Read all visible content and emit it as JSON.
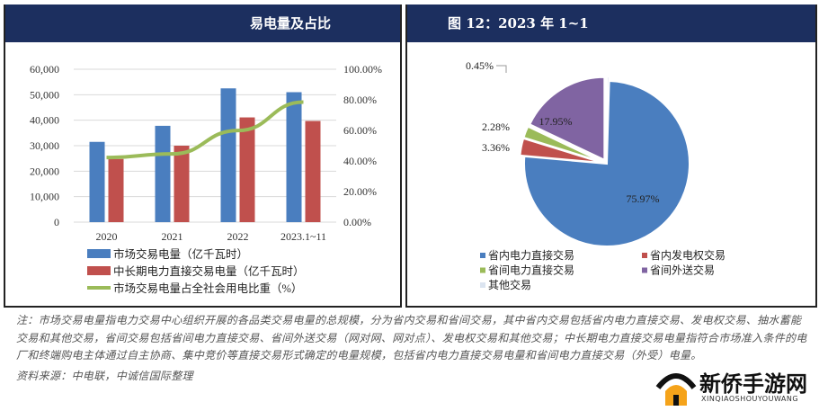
{
  "left_panel": {
    "title": "易电量及占比"
  },
  "right_panel": {
    "title": "图 12：2023 年 1~1"
  },
  "colors": {
    "blue": "#4a7ebf",
    "red": "#c0504d",
    "green": "#9bbb59",
    "purple": "#8064a2",
    "header": "#1c2f5f"
  },
  "chart_data": [
    {
      "type": "bar+line",
      "categories": [
        "2020",
        "2021",
        "2022",
        "2023.1~11"
      ],
      "y_left": {
        "range": [
          0,
          60000
        ],
        "ticks": [
          "0",
          "10,000",
          "20,000",
          "30,000",
          "40,000",
          "50,000",
          "60,000"
        ]
      },
      "y_right": {
        "range": [
          0,
          100
        ],
        "ticks": [
          "0.00%",
          "20.00%",
          "40.00%",
          "60.00%",
          "80.00%",
          "100.00%"
        ]
      },
      "grid": true,
      "legend": "bottom",
      "series": [
        {
          "name": "市场交易电量（亿千瓦时）",
          "type": "bar",
          "axis": "left",
          "color": "#4a7ebf",
          "values": [
            31500,
            37800,
            52500,
            51000
          ]
        },
        {
          "name": "中长期电力直接交易电量（亿千瓦时）",
          "type": "bar",
          "axis": "left",
          "color": "#c0504d",
          "values": [
            24800,
            30000,
            41100,
            39700
          ]
        },
        {
          "name": "市场交易电量占全社会用电比重（%）",
          "type": "line",
          "axis": "right",
          "color": "#9bbb59",
          "values": [
            42.3,
            44.6,
            59.9,
            78.5
          ]
        }
      ]
    },
    {
      "type": "pie",
      "legend": "bottom",
      "slices": [
        {
          "name": "其他交易",
          "value": 0.45,
          "label": "0.45%",
          "color": "#dbe4f0"
        },
        {
          "name": "省内电力直接交易",
          "value": 75.97,
          "label": "75.97%",
          "color": "#4a7ebf"
        },
        {
          "name": "省内发电权交易",
          "value": 3.36,
          "label": "3.36%",
          "color": "#c0504d"
        },
        {
          "name": "省间电力直接交易",
          "value": 2.28,
          "label": "2.28%",
          "color": "#9bbb59"
        },
        {
          "name": "省间外送交易",
          "value": 17.95,
          "label": "17.95%",
          "color": "#8064a2"
        }
      ],
      "legend_order": [
        "省内电力直接交易",
        "省内发电权交易",
        "省间电力直接交易",
        "省间外送交易",
        "其他交易"
      ]
    }
  ],
  "notes": {
    "note": "注：市场交易电量指电力交易中心组织开展的各品类交易电量的总规模，分为省内交易和省间交易，其中省内交易包括省内电力直接交易、发电权交易、抽水蓄能交易和其他交易，省间交易包括省间电力直接交易、省间外送交易（网对网、网对点）、发电权交易和其他交易；中长期电力直接交易电量指符合市场准入条件的电厂和终端购电主体通过自主协商、集中竞价等直接交易形式确定的电量规模，包括省内电力直接交易电量和省间电力直接交易（外受）电量。",
    "source": "资料来源：中电联，中诚信国际整理"
  },
  "watermark": {
    "name": "新侨手游网",
    "sub": "XINQIAOSHOUYOUWANG"
  }
}
